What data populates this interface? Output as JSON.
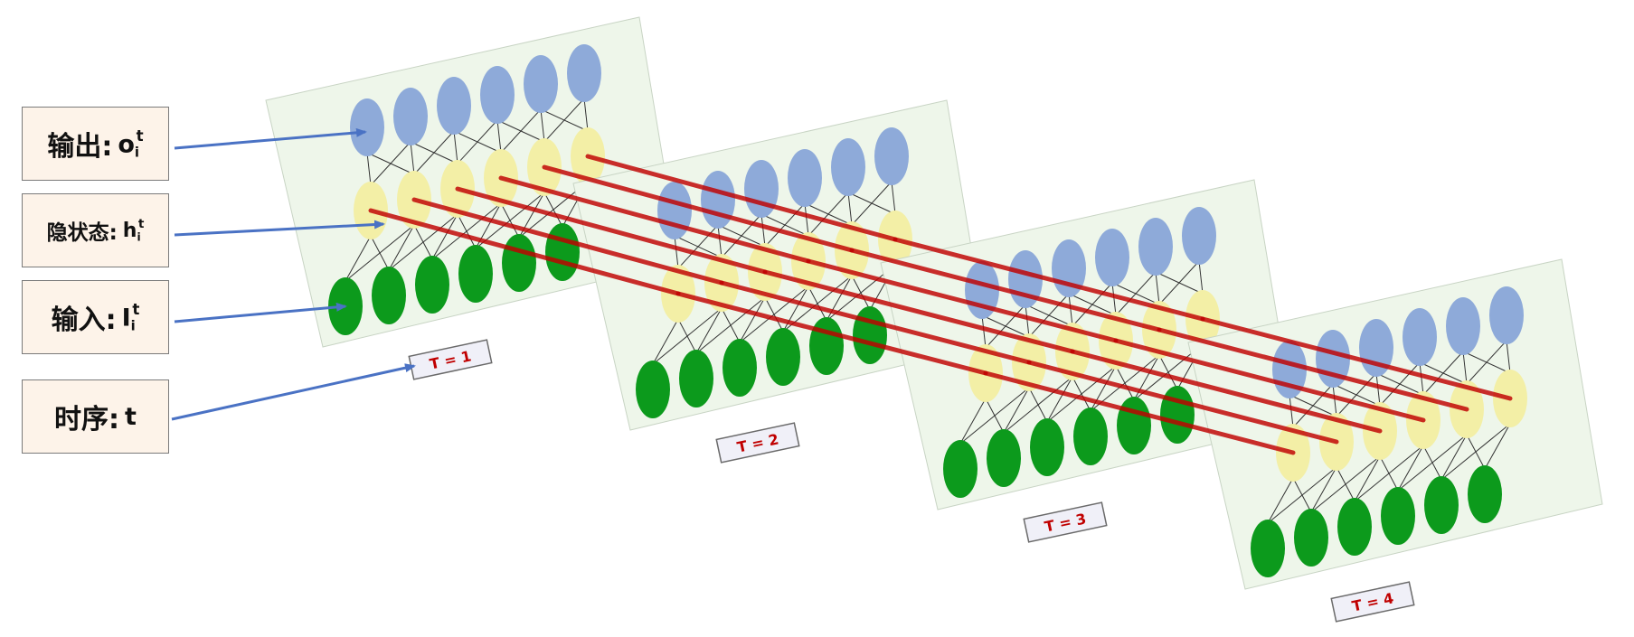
{
  "legend": {
    "output": {
      "label": "输出:",
      "symbol": "o",
      "sub": "i",
      "sup": "t"
    },
    "hidden": {
      "label": "隐状态:",
      "symbol": "h",
      "sub": "i",
      "sup": "t"
    },
    "input": {
      "label": "输入:",
      "symbol": "I",
      "sub": "i",
      "sup": "t"
    },
    "time": {
      "label": "时序:",
      "symbol": "t"
    }
  },
  "timesteps": [
    {
      "label": "T = 1"
    },
    {
      "label": "T = 2"
    },
    {
      "label": "T = 3"
    },
    {
      "label": "T = 4"
    }
  ],
  "layers": [
    "output",
    "hidden",
    "input"
  ],
  "nodes_per_layer": 6,
  "colors": {
    "output_node": "#8eaad9",
    "hidden_node": "#f3efa6",
    "input_node": "#0c9a1c",
    "panel_fill": "#eef6ea",
    "recurrent_link": "#c00000",
    "legend_arrow": "#4a72c4",
    "tag_text": "#c00000",
    "tag_fill": "#f0f0f8"
  }
}
